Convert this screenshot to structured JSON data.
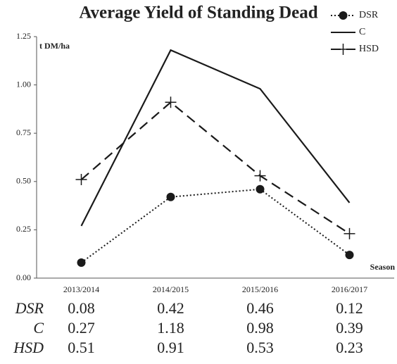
{
  "chart_data": {
    "type": "line",
    "title": "Average Yield of Standing Dead",
    "y_label": "t DM/ha",
    "x_label": "Season",
    "categories": [
      "2013/2014",
      "2014/2015",
      "2015/2016",
      "2016/2017"
    ],
    "series": [
      {
        "name": "DSR",
        "color": "#1a1a1a",
        "line_style": "dotted",
        "marker": "circle",
        "values": [
          0.08,
          0.42,
          0.46,
          0.12
        ]
      },
      {
        "name": "C",
        "color": "#1a1a1a",
        "line_style": "solid",
        "marker": "none",
        "values": [
          0.27,
          1.18,
          0.98,
          0.39
        ]
      },
      {
        "name": "HSD",
        "color": "#1a1a1a",
        "line_style": "dashed",
        "marker": "plus",
        "values": [
          0.51,
          0.91,
          0.53,
          0.23
        ]
      }
    ],
    "ylim": [
      0,
      1.25
    ],
    "yticks": [
      {
        "value": 0,
        "label": "0.00"
      },
      0.25,
      {
        "value": 0.5,
        "label": "0.50"
      },
      0.75,
      {
        "value": 1,
        "label": "1.00"
      },
      1.25
    ],
    "grid": false,
    "legend": "upper right",
    "data_table": true
  }
}
